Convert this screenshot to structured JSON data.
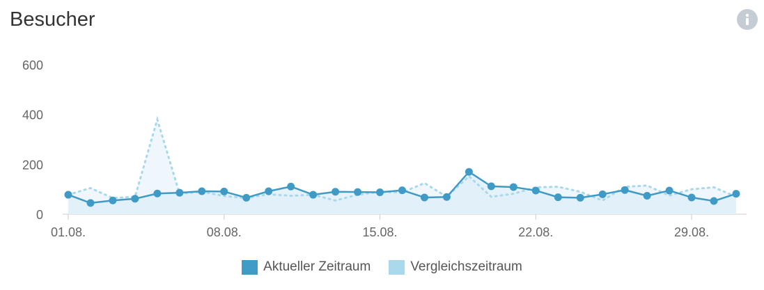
{
  "widget": {
    "title": "Besucher",
    "info_icon": "info-icon"
  },
  "colors": {
    "current": "#3f9ac6",
    "comparison": "#a8d8ea",
    "current_fill": "#ddeef8",
    "axis": "#cccccc",
    "tick_text": "#666666"
  },
  "chart_data": {
    "type": "line",
    "title": "Besucher",
    "xlabel": "",
    "ylabel": "",
    "ylim": [
      0,
      600
    ],
    "yticks": [
      "0",
      "200",
      "400",
      "600"
    ],
    "xtick_labels": [
      "01.08.",
      "08.08.",
      "15.08.",
      "22.08.",
      "29.08."
    ],
    "x": [
      "01.08.",
      "02.08.",
      "03.08.",
      "04.08.",
      "05.08.",
      "06.08.",
      "07.08.",
      "08.08.",
      "09.08.",
      "10.08.",
      "11.08.",
      "12.08.",
      "13.08.",
      "14.08.",
      "15.08.",
      "16.08.",
      "17.08.",
      "18.08.",
      "19.08.",
      "20.08.",
      "21.08.",
      "22.08.",
      "23.08.",
      "24.08.",
      "25.08.",
      "26.08.",
      "27.08.",
      "28.08.",
      "29.08.",
      "30.08.",
      "31.08."
    ],
    "series": [
      {
        "name": "Aktueller Zeitraum",
        "values": [
          78,
          45,
          55,
          62,
          83,
          86,
          92,
          91,
          66,
          92,
          111,
          78,
          90,
          89,
          88,
          96,
          67,
          69,
          170,
          112,
          109,
          95,
          68,
          66,
          80,
          97,
          74,
          95,
          67,
          53,
          82
        ]
      },
      {
        "name": "Vergleichszeitraum",
        "values": [
          78,
          105,
          65,
          70,
          380,
          82,
          90,
          73,
          65,
          80,
          74,
          78,
          55,
          78,
          90,
          87,
          125,
          70,
          152,
          70,
          82,
          108,
          110,
          90,
          55,
          110,
          115,
          75,
          100,
          108,
          70
        ]
      }
    ],
    "legend": "bottom-center",
    "grid": false
  }
}
